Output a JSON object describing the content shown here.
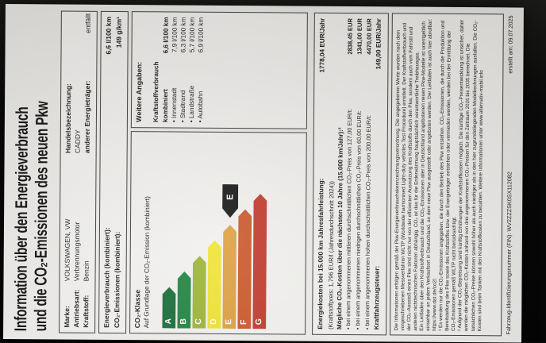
{
  "document": {
    "title_line1": "Information über den Energieverbrauch",
    "title_line2": "und die CO₂-Emissionen des neuen Pkw",
    "vehicle": {
      "marke_label": "Marke:",
      "marke_value": "VOLKSWAGEN, VW",
      "antriebsart_label": "Antriebsart:",
      "antriebsart_value": "Verbrennungsmotor",
      "kraftstoff_label": "Kraftstoff:",
      "kraftstoff_value": "Benzin",
      "handelsbezeichnung_label": "Handelsbezeichnung:",
      "handelsbezeichnung_value": "CADDY",
      "energietraeger_label": "anderer Energieträger:",
      "energietraeger_value": "entfällt"
    },
    "verbrauch": {
      "energieverbrauch_label": "Energieverbrauch (kombiniert):",
      "energieverbrauch_value": "6,6 l/100 km",
      "co2_label": "CO₂-Emissionen (kombiniert):",
      "co2_value": "149 g/km¹"
    },
    "co2_klasse": {
      "heading": "CO₂-Klasse",
      "subheading": "Auf Grundlage der CO₂-Emission (kombiniert)",
      "rated_class": "E",
      "classes": [
        {
          "letter": "A",
          "color": "#186c38"
        },
        {
          "letter": "B",
          "color": "#1e8540"
        },
        {
          "letter": "C",
          "color": "#9cb53a"
        },
        {
          "letter": "D",
          "color": "#f0e334"
        },
        {
          "letter": "E",
          "color": "#dda040"
        },
        {
          "letter": "F",
          "color": "#cb582c"
        },
        {
          "letter": "G",
          "color": "#c13a2d"
        }
      ]
    },
    "weitere_angaben": {
      "heading": "Weitere Angaben:",
      "kraftstoffverbrauch_label": "Kraftstoffverbrauch",
      "rows": [
        {
          "label": "kombiniert",
          "value": "6,6 l/100 km"
        },
        {
          "label": "• Innenstadt",
          "value": "7,9 l/100 km"
        },
        {
          "label": "• Stadtrand",
          "value": "6,3 l/100 km"
        },
        {
          "label": "• Landstraße",
          "value": "5,7 l/100 km"
        },
        {
          "label": "• Autobahn",
          "value": "6,9 l/100 km"
        }
      ]
    },
    "kosten": {
      "energiekosten_label": "Energiekosten bei 15.000 km Jahresfahrleistung:",
      "energiekosten_value": "1778,04 EUR/Jahr",
      "kraftstoffpreis_note": "(Kraftstoffpreis: 1,796 EUR/l (Jahresdurchschnitt 2024))",
      "co2_kosten_heading": "Mögliche CO₂-Kosten über die nächsten 10 Jahre (15.000 km/Jahr):²",
      "rows": [
        {
          "label": "• bei einem angenommenen mittleren durchschnittlichen CO₂-Preis von 127,00 EUR/t:",
          "value": "2838,45 EUR"
        },
        {
          "label": "• bei einem angenommenen niedrigen durchschnittlichen CO₂-Preis von 60,00 EUR/t:",
          "value": "1341,00 EUR"
        },
        {
          "label": "• bei einem angenommenen hohen durchschnittlichen CO₂-Preis von 200,00 EUR/t:",
          "value": "4470,00 EUR"
        }
      ],
      "steuer_label": "Kraftfahrzeugsteuer:",
      "steuer_value": "149,00 EUR/Jahr"
    },
    "fine_print": {
      "p1": "Die Informationen erfolgen gemäß der Pkw-Energieverbrauchskennzeichnungsverordnung. Die angegebenen Werte wurden nach dem vorgeschriebenen Messverfahren WLTP (Worldwide harmonised Light-duty vehicles Test Procedure) ermittelt. Der Kraftstoffverbrauch und der CO₂-Ausstoß eines Pkw sind nicht nur von der effizienten Ausnutzung des Kraftstoffs durch den Pkw, sondern auch vom Fahrstil und anderen nichttechnischen Faktoren abhängig. CO₂ ist das für die Erderwärmung hauptsächlich verantwortliche Treibhausgas.",
      "p2": "Ein Leitfaden über den Kraftstoffverbrauch und die CO₂-Emissionen aller in Deutschland angebotenen neuen Pkw-Modelle ist unentgeltlich einsehbar an jedem Verkaufsort in Deutschland, an dem neue Pkw ausgestellt oder angeboten werden. Der Leitfaden ist auch hier abrufbar: https://www.dat.de/co2/.",
      "p3": "¹ Es werden nur die CO₂-Emissionen angegeben, die durch den Betrieb des Pkw entstehen. CO₂-Emissionen, die durch die Produktion und Bereitstellung des Pkw sowie des Kraftstoffes bzw. der Energieträger entstehen oder vermieden werden, werden bei der Ermittlung der CO₂-Emissionen gemäß WLTP nicht berücksichtigt.",
      "p4": "² Aufgrund der CO₂-Bepreisung sind künftig Erhöhungen der Kraftstoffkosten möglich. Die künftige CO₂-Preisentwicklung ist unsicher, daher werden die möglichen CO₂-Kosten anhand von drei angenommenen CO₂-Preisen für den Zeitraum 2026 bis 2035 berechnet. Die tatsächlichen CO₂-Preise können sowohl höher als auch niedriger als in den hier zugrundeliegenden Modellrechnungen ausfallen. Die CO₂-Kosten sind beim Tanken mit den Kraftstoffkosten zu bezahlen. Weitere Informationen unter www.alternativ-mobil.info"
    },
    "footer": {
      "fin": "Fahrzeug-Identifizierungsnummer (FIN): WV2ZZZSK0SX112082",
      "erstellt": "erstellt am: 09.07.2025"
    }
  }
}
